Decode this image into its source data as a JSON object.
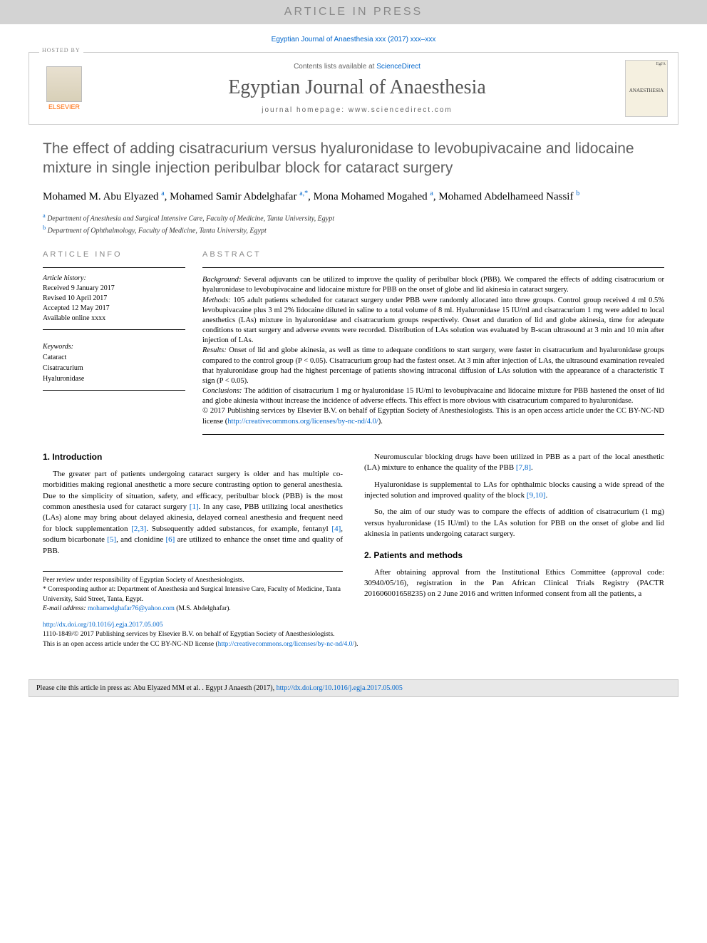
{
  "banner": {
    "text": "ARTICLE IN PRESS"
  },
  "citation": {
    "text": "Egyptian Journal of Anaesthesia xxx (2017) xxx–xxx"
  },
  "header": {
    "hosted_by": "HOSTED BY",
    "elsevier": "ELSEVIER",
    "contents": "Contents lists available at ",
    "contents_link": "ScienceDirect",
    "journal": "Egyptian Journal of Anaesthesia",
    "homepage": "journal homepage: www.sciencedirect.com",
    "cover_tag": "EgJA",
    "cover_title": "ANAESTHESIA"
  },
  "title": "The effect of adding cisatracurium versus hyaluronidase to levobupivacaine and lidocaine mixture in single injection peribulbar block for cataract surgery",
  "authors_html": "Mohamed M. Abu Elyazed <sup>a</sup>, Mohamed Samir Abdelghafar <sup>a,*</sup>, Mona Mohamed Mogahed <sup>a</sup>, Mohamed Abdelhameed Nassif <sup>b</sup>",
  "affiliations": {
    "a": "Department of Anesthesia and Surgical Intensive Care, Faculty of Medicine, Tanta University, Egypt",
    "b": "Department of Ophthalmology, Faculty of Medicine, Tanta University, Egypt"
  },
  "info": {
    "heading": "ARTICLE INFO",
    "history_label": "Article history:",
    "received": "Received 9 January 2017",
    "revised": "Revised 10 April 2017",
    "accepted": "Accepted 12 May 2017",
    "available": "Available online xxxx",
    "keywords_label": "Keywords:",
    "keywords": [
      "Cataract",
      "Cisatracurium",
      "Hyaluronidase"
    ]
  },
  "abstract": {
    "heading": "ABSTRACT",
    "background_label": "Background:",
    "background": " Several adjuvants can be utilized to improve the quality of peribulbar block (PBB). We compared the effects of adding cisatracurium or hyaluronidase to levobupivacaine and lidocaine mixture for PBB on the onset of globe and lid akinesia in cataract surgery.",
    "methods_label": "Methods:",
    "methods": " 105 adult patients scheduled for cataract surgery under PBB were randomly allocated into three groups. Control group received 4 ml 0.5% levobupivacaine plus 3 ml 2% lidocaine diluted in saline to a total volume of 8 ml. Hyaluronidase 15 IU/ml and cisatracurium 1 mg were added to local anesthetics (LAs) mixture in hyaluronidase and cisatracurium groups respectively. Onset and duration of lid and globe akinesia, time for adequate conditions to start surgery and adverse events were recorded. Distribution of LAs solution was evaluated by B-scan ultrasound at 3 min and 10 min after injection of LAs.",
    "results_label": "Results:",
    "results": " Onset of lid and globe akinesia, as well as time to adequate conditions to start surgery, were faster in cisatracurium and hyaluronidase groups compared to the control group (P < 0.05). Cisatracurium group had the fastest onset. At 3 min after injection of LAs, the ultrasound examination revealed that hyaluronidase group had the highest percentage of patients showing intraconal diffusion of LAs solution with the appearance of a characteristic T sign (P < 0.05).",
    "conclusions_label": "Conclusions:",
    "conclusions": " The addition of cisatracurium 1 mg or hyaluronidase 15 IU/ml to levobupivacaine and lidocaine mixture for PBB hastened the onset of lid and globe akinesia without increase the incidence of adverse effects. This effect is more obvious with cisatracurium compared to hyaluronidase.",
    "copyright": "© 2017 Publishing services by Elsevier B.V. on behalf of Egyptian Society of Anesthesiologists. This is an open access article under the CC BY-NC-ND license (",
    "license_url": "http://creativecommons.org/licenses/by-nc-nd/4.0/",
    "copyright_end": ")."
  },
  "body": {
    "intro_heading": "1. Introduction",
    "intro_p1": "The greater part of patients undergoing cataract surgery is older and has multiple co-morbidities making regional anesthetic a more secure contrasting option to general anesthesia. Due to the simplicity of situation, safety, and efficacy, peribulbar block (PBB) is the most common anesthesia used for cataract surgery ",
    "ref1": "[1]",
    "intro_p1b": ". In any case, PBB utilizing local anesthetics (LAs) alone may bring about delayed akinesia, delayed corneal anesthesia and frequent need for block supplementation ",
    "ref23": "[2,3]",
    "intro_p1c": ". Subsequently added substances, for example, fentanyl ",
    "ref4": "[4]",
    "intro_p1d": ", sodium bicarbonate ",
    "ref5": "[5]",
    "intro_p1e": ", and clonidine ",
    "ref6": "[6]",
    "intro_p1f": " are utilized to enhance the onset time and quality of PBB.",
    "intro_p2": "Neuromuscular blocking drugs have been utilized in PBB as a part of the local anesthetic (LA) mixture to enhance the quality of the PBB ",
    "ref78": "[7,8]",
    "intro_p2b": ".",
    "intro_p3": "Hyaluronidase is supplemental to LAs for ophthalmic blocks causing a wide spread of the injected solution and improved quality of the block ",
    "ref910": "[9,10]",
    "intro_p3b": ".",
    "intro_p4": "So, the aim of our study was to compare the effects of addition of cisatracurium (1 mg) versus hyaluronidase (15 IU/ml) to the LAs solution for PBB on the onset of globe and lid akinesia in patients undergoing cataract surgery.",
    "methods_heading": "2. Patients and methods",
    "methods_p1": "After obtaining approval from the Institutional Ethics Committee (approval code: 30940/05/16), registration in the Pan African Clinical Trials Registry (PACTR 201606001658235) on 2 June 2016 and written informed consent from all the patients, a"
  },
  "footnotes": {
    "peer": "Peer review under responsibility of Egyptian Society of Anesthesiologists.",
    "corr": "* Corresponding author at: Department of Anesthesia and Surgical Intensive Care, Faculty of Medicine, Tanta University, Said Street, Tanta, Egypt.",
    "email_label": "E-mail address: ",
    "email": "mohamedghafar76@yahoo.com",
    "email_suffix": " (M.S. Abdelghafar)."
  },
  "doi": {
    "url": "http://dx.doi.org/10.1016/j.egja.2017.05.005",
    "line2": "1110-1849/© 2017 Publishing services by Elsevier B.V. on behalf of Egyptian Society of Anesthesiologists.",
    "line3": "This is an open access article under the CC BY-NC-ND license (",
    "license": "http://creativecommons.org/licenses/by-nc-nd/4.0/",
    "line3_end": ")."
  },
  "citebox": {
    "text": "Please cite this article in press as: Abu Elyazed MM et al. . Egypt J Anaesth (2017), ",
    "url": "http://dx.doi.org/10.1016/j.egja.2017.05.005"
  },
  "colors": {
    "link": "#0066cc",
    "banner_bg": "#d3d3d3",
    "title_gray": "#606060",
    "elsevier_orange": "#ff6600"
  }
}
